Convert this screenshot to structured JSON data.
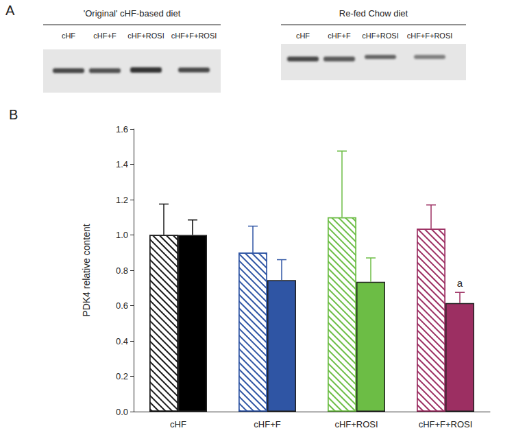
{
  "chart_data": {
    "type": "bar",
    "title": "B",
    "y_label": "PDK4 relative content",
    "categories": [
      "cHF",
      "cHF+F",
      "cHF+ROSI",
      "cHF+F+ROSI"
    ],
    "series": [
      {
        "name": "'Original' cHF-based diet",
        "colors": [
          "#1a1a1a",
          "#2f55a4",
          "#6cbd45",
          "#9c2f62"
        ],
        "values": [
          1.0,
          0.9,
          1.1,
          1.035
        ],
        "errors": [
          0.175,
          0.15,
          0.375,
          0.135
        ]
      },
      {
        "name": "Re-fed Chow diet",
        "colors": [
          "#000000",
          "#2f55a4",
          "#6cbd45",
          "#9c2f62"
        ],
        "values": [
          1.0,
          0.745,
          0.735,
          0.615
        ],
        "errors": [
          0.085,
          0.115,
          0.135,
          0.06
        ]
      }
    ],
    "ylim": [
      0,
      1.6
    ],
    "yticks": [
      {
        "value": 0,
        "label": "0.0"
      },
      0.2,
      0.4,
      0.6,
      0.8,
      {
        "value": 1,
        "label": "1.0"
      },
      1.2,
      1.4,
      1.6
    ],
    "grid": false,
    "annotations": [
      {
        "text": "a",
        "category": "cHF+F+ROSI",
        "series": "Re-fed Chow diet"
      }
    ]
  },
  "blot": {
    "label": "A",
    "groups": [
      {
        "title": "'Original' cHF-based diet",
        "lanes": [
          "cHF",
          "cHF+F",
          "cHF+ROSI",
          "cHF+F+ROSI"
        ]
      },
      {
        "title": "Re-fed Chow diet",
        "lanes": [
          "cHF",
          "cHF+F",
          "cHF+ROSI",
          "cHF+F+ROSI"
        ]
      }
    ]
  }
}
